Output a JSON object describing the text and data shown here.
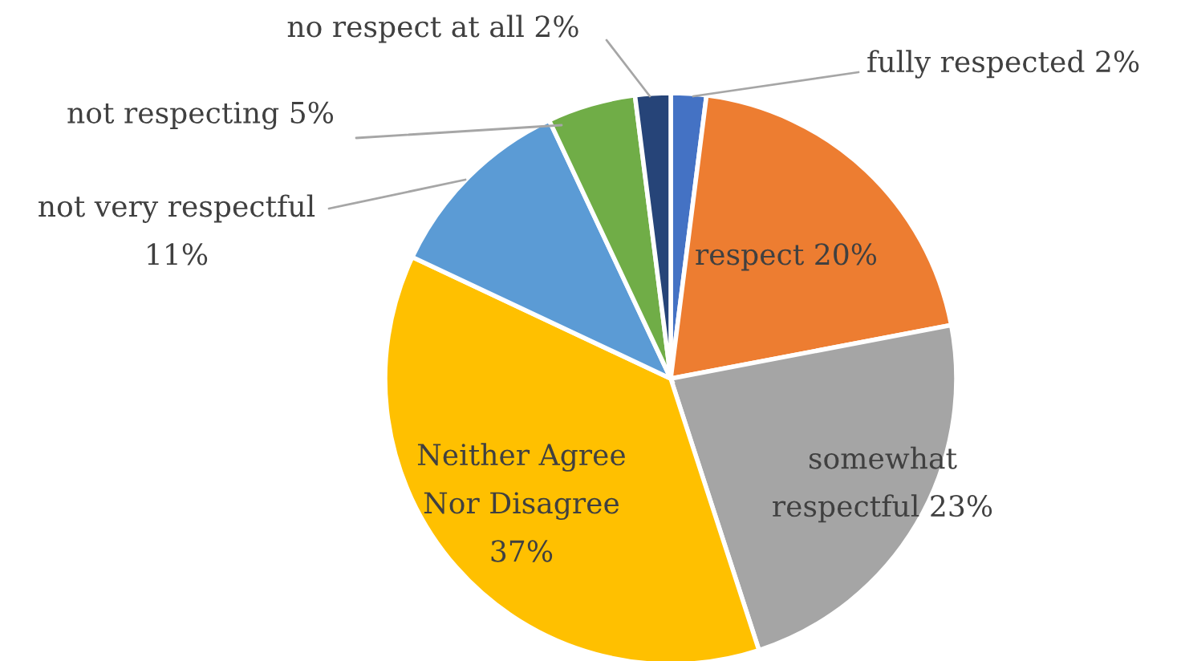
{
  "chart_data": {
    "type": "pie",
    "categories": [
      "fully respected",
      "respect",
      "somewhat respectful",
      "Neither Agree Nor Disagree",
      "not very respectful",
      "not respecting",
      "no respect at all"
    ],
    "values": [
      2,
      20,
      23,
      37,
      11,
      5,
      2
    ],
    "value_labels": [
      "2%",
      "20%",
      "23%",
      "37%",
      "11%",
      "5%",
      "2%"
    ],
    "colors": [
      "#4472c4",
      "#ed7d31",
      "#a5a5a5",
      "#ffc000",
      "#5b9bd5",
      "#70ad47",
      "#264478"
    ],
    "legend": false
  }
}
